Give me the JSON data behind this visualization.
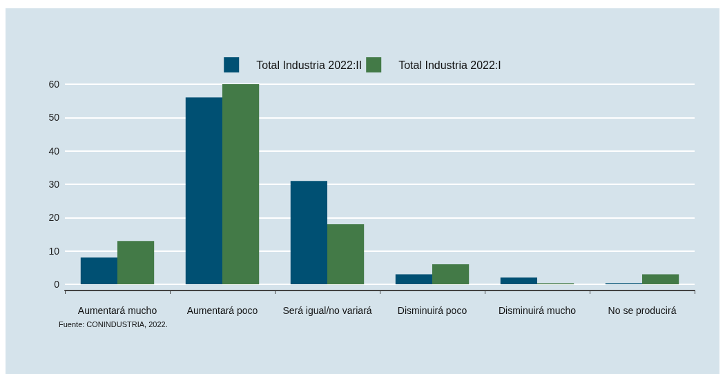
{
  "chart_data": {
    "type": "bar",
    "categories": [
      "Aumentará mucho",
      "Aumentará poco",
      "Será igual/no variará",
      "Disminuirá poco",
      "Disminuirá mucho",
      "No se producirá"
    ],
    "series": [
      {
        "name": "Total Industria 2022:II",
        "color": "#005073",
        "values": [
          8,
          56,
          31,
          3,
          2,
          0.3
        ]
      },
      {
        "name": "Total Industria 2022:I",
        "color": "#437a47",
        "values": [
          13,
          60,
          18,
          6,
          0.3,
          3
        ]
      }
    ],
    "ylim": [
      0,
      60
    ],
    "yticks": [
      0,
      10,
      20,
      30,
      40,
      50,
      60
    ],
    "grid": "y",
    "legend": "top",
    "annotations": [
      "Fuente: CONINDUSTRIA, 2022."
    ]
  }
}
